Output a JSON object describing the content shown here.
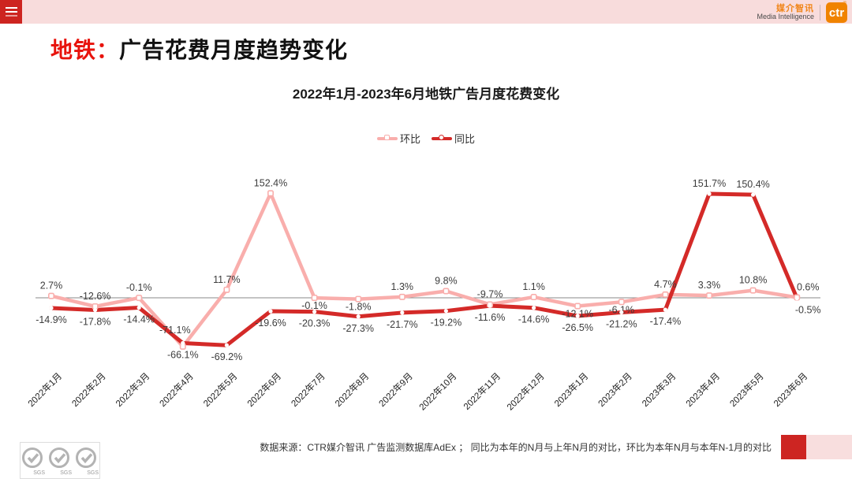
{
  "topbar": {
    "brand_cn": "媒介智讯",
    "brand_en": "Media Intelligence",
    "logo_text": "ctr",
    "registered_mark": "®"
  },
  "page_title": {
    "highlight": "地铁：",
    "rest": "广告花费月度趋势变化"
  },
  "chart_data": {
    "type": "line",
    "title": "2022年1月-2023年6月地铁广告月度花费变化",
    "categories": [
      "2022年1月",
      "2022年2月",
      "2022年3月",
      "2022年4月",
      "2022年5月",
      "2022年6月",
      "2022年7月",
      "2022年8月",
      "2022年9月",
      "2022年10月",
      "2022年11月",
      "2022年12月",
      "2023年1月",
      "2023年2月",
      "2023年3月",
      "2023年4月",
      "2023年5月",
      "2023年6月"
    ],
    "series": [
      {
        "name": "环比",
        "color": "#f9aeac",
        "values": [
          2.7,
          -12.6,
          -0.1,
          -71.1,
          11.7,
          152.4,
          -0.1,
          -1.8,
          1.3,
          9.8,
          -9.7,
          1.1,
          -12.1,
          -6.1,
          4.7,
          3.3,
          10.8,
          0.6
        ],
        "label_side": [
          "above",
          "above",
          "above",
          "above",
          "above",
          "above",
          "below",
          "below",
          "above",
          "above",
          "above",
          "above",
          "below",
          "below",
          "above",
          "above",
          "above",
          "above"
        ]
      },
      {
        "name": "同比",
        "color": "#d42a28",
        "values": [
          -14.9,
          -17.8,
          -14.4,
          -66.1,
          -69.2,
          -19.6,
          -20.3,
          -27.3,
          -21.7,
          -19.2,
          -11.6,
          -14.6,
          -26.5,
          -21.2,
          -17.4,
          151.7,
          150.4,
          -0.5
        ],
        "label_side": [
          "below",
          "below",
          "below",
          "below",
          "below",
          "below",
          "below",
          "below",
          "below",
          "below",
          "below",
          "below",
          "below",
          "below",
          "below",
          "above",
          "above",
          "below"
        ]
      }
    ],
    "ylim": [
      -90,
      175
    ],
    "xlabel": "",
    "ylabel": "",
    "grid": false,
    "legend_position": "top-center",
    "label_format": "percent_one_decimal",
    "layout_hints": {
      "zero_line": true,
      "x_labels_rotated_deg": 45,
      "label_offsets": {
        "0_3": [
          -10,
          -8
        ],
        "0_17": [
          14,
          0
        ],
        "1_17": [
          14,
          0
        ]
      }
    }
  },
  "footer": {
    "source_text": "数据来源：CTR媒介智讯 广告监测数据库AdEx ； 同比为本年的N月与上年N月的对比，环比为本年N月与本年N-1月的对比",
    "sgs_label": "SGS"
  },
  "colors": {
    "topbar_pink": "#f8dcdc",
    "accent_red": "#cd2420",
    "title_red": "#e8130c",
    "brand_orange": "#f08300",
    "series_mom_pink": "#f9aeac",
    "series_yoy_red": "#d42a28"
  }
}
